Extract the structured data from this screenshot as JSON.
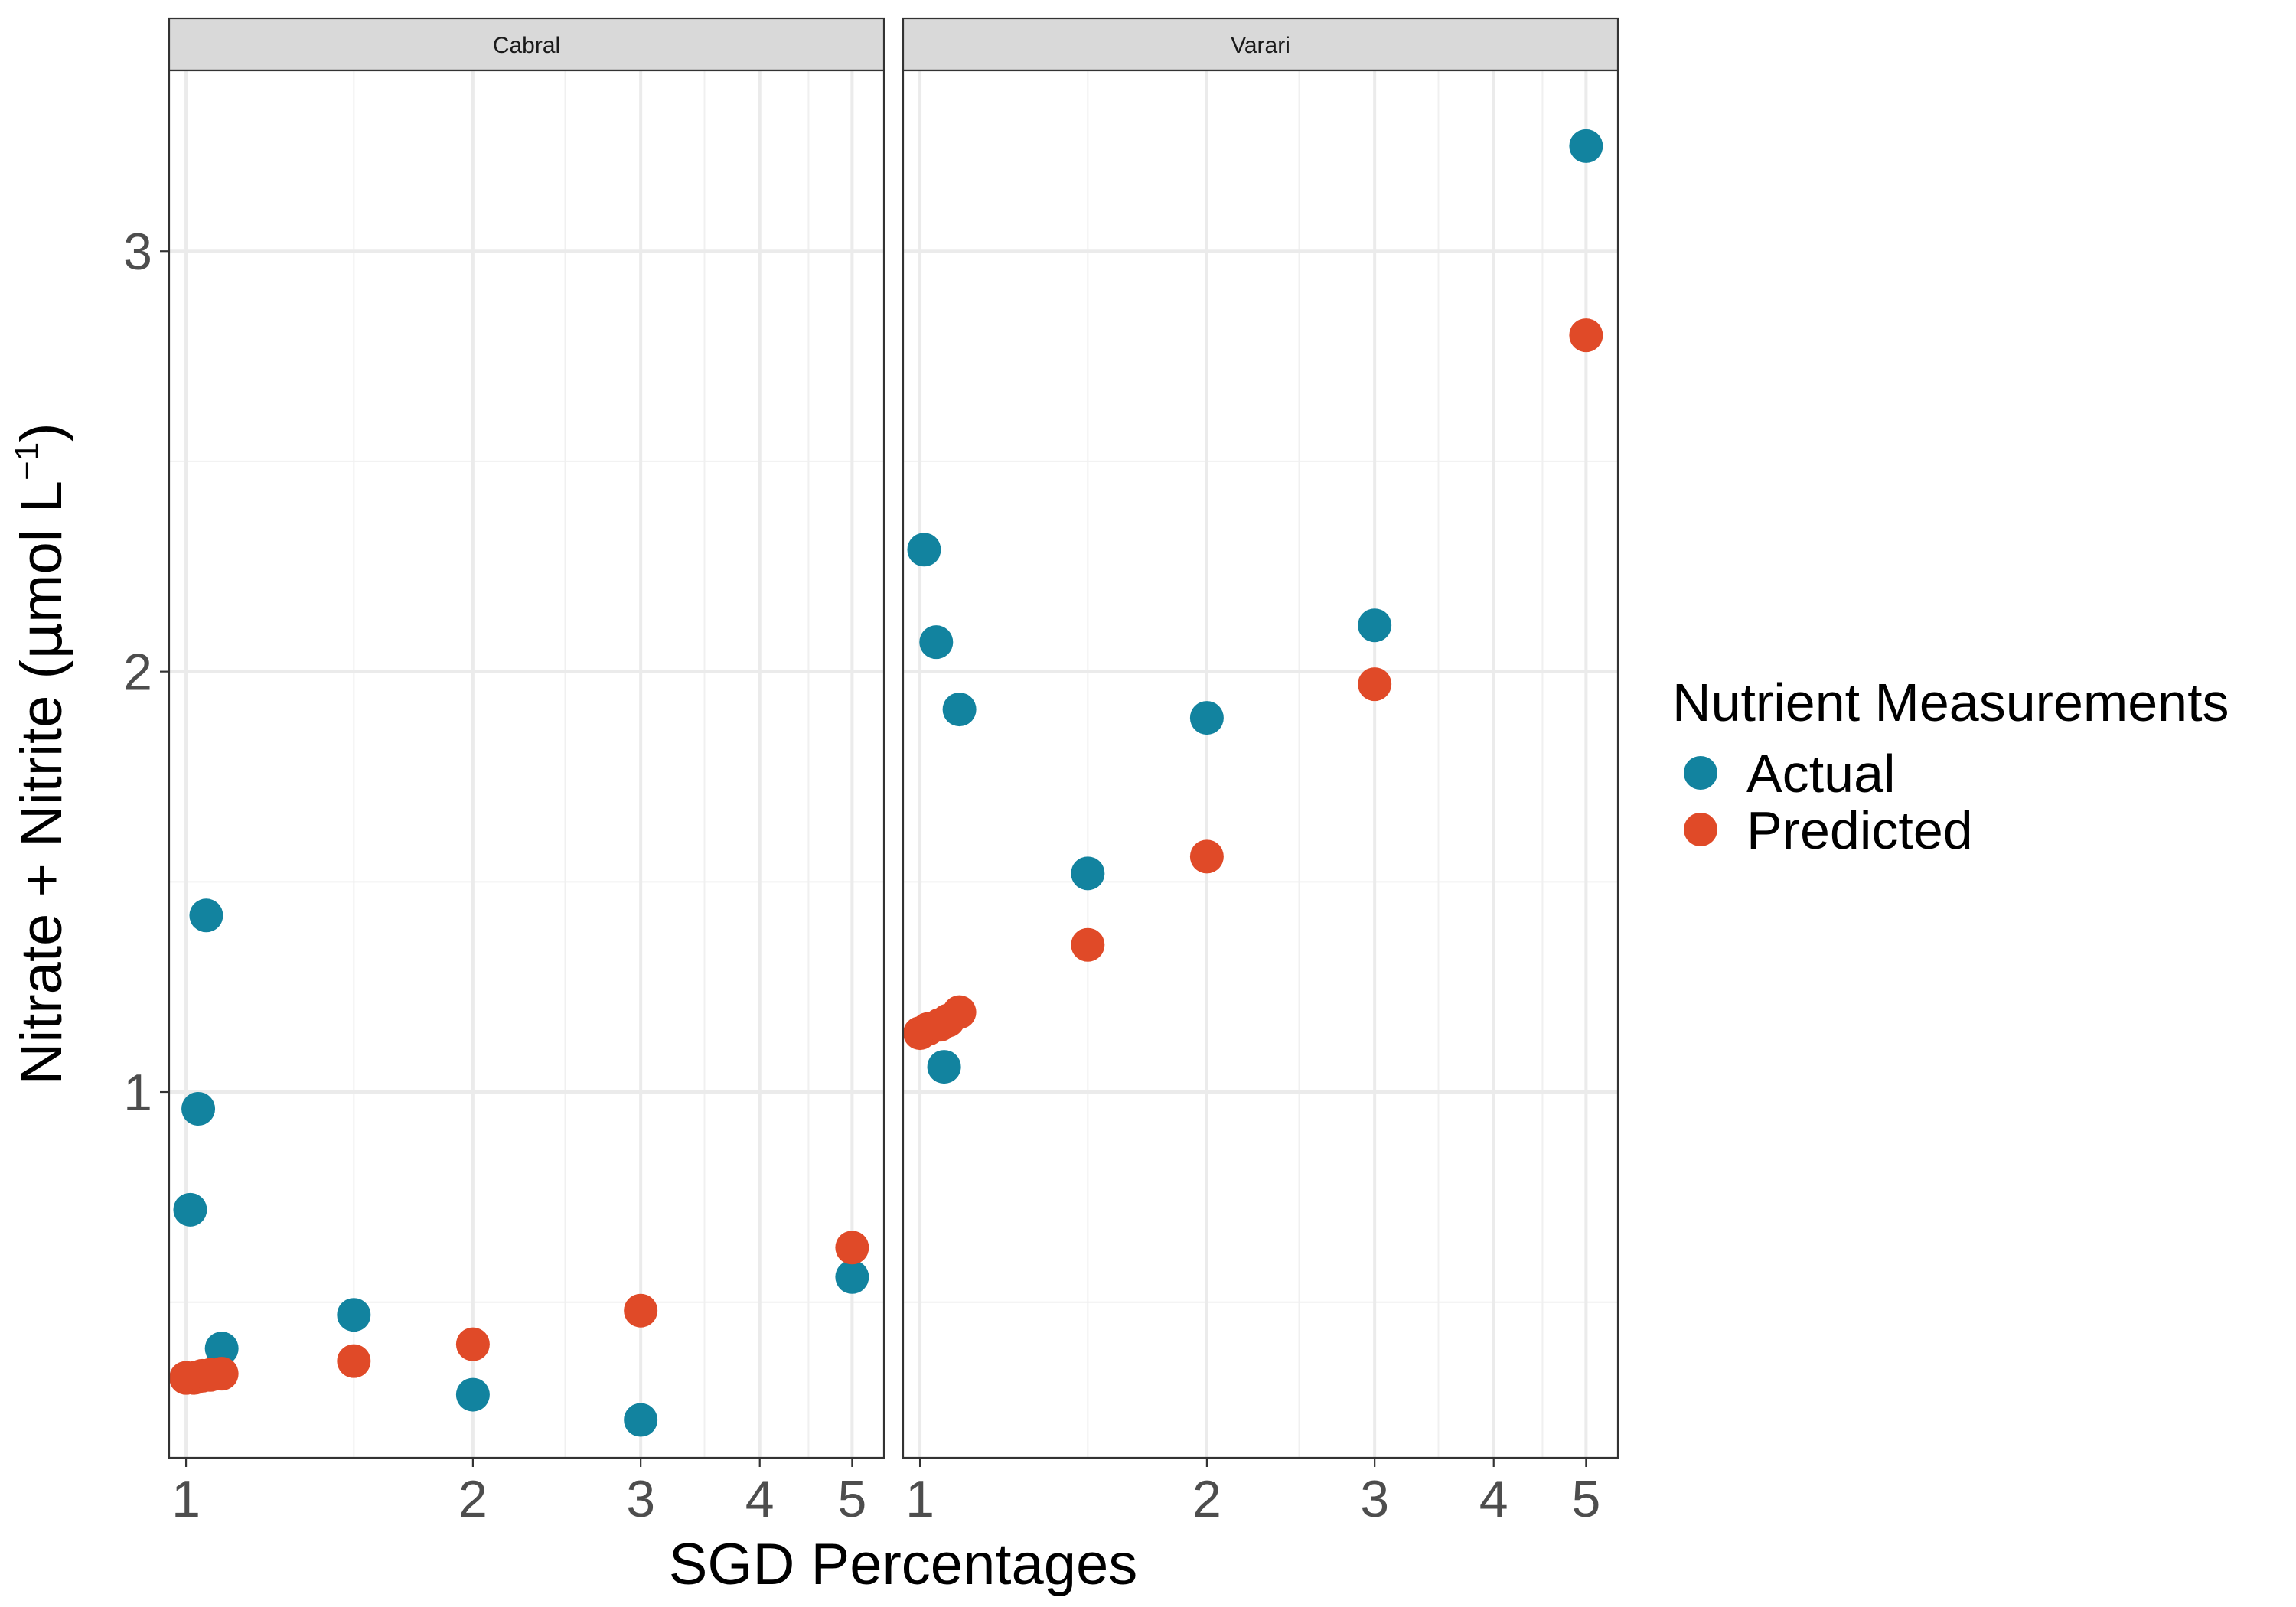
{
  "chart_data": {
    "type": "scatter",
    "xlabel": "SGD Percentages",
    "ylabel_main": "Nitrate + Nitrite (",
    "ylabel_mu": "μ",
    "ylabel_unit": "mol L",
    "ylabel_sup": "−1",
    "ylabel_close": ")",
    "x_scale": "log",
    "xlim": [
      0.96,
      5.4
    ],
    "ylim": [
      0.13,
      3.43
    ],
    "x_ticks": [
      1,
      2,
      3,
      4,
      5
    ],
    "x_tick_labels": [
      "1",
      "2",
      "3",
      "4",
      "5"
    ],
    "y_ticks": [
      1,
      2,
      3
    ],
    "y_tick_labels": [
      "1",
      "2",
      "3"
    ],
    "grid": true,
    "legend": {
      "title": "Nutrient Measurements",
      "position": "right",
      "entries": [
        {
          "label": "Actual",
          "color": "#12839f"
        },
        {
          "label": "Predicted",
          "color": "#e04a28"
        }
      ]
    },
    "facets": [
      {
        "name": "Cabral",
        "series": [
          {
            "name": "Actual",
            "color": "#12839f",
            "points": [
              [
                1.01,
                0.72
              ],
              [
                1.03,
                0.96
              ],
              [
                1.05,
                1.42
              ],
              [
                1.09,
                0.39
              ],
              [
                1.5,
                0.47
              ],
              [
                2.0,
                0.28
              ],
              [
                3.0,
                0.22
              ],
              [
                5.0,
                0.56
              ]
            ]
          },
          {
            "name": "Predicted",
            "color": "#e04a28",
            "points": [
              [
                1.0,
                0.32
              ],
              [
                1.02,
                0.32
              ],
              [
                1.04,
                0.325
              ],
              [
                1.06,
                0.327
              ],
              [
                1.09,
                0.33
              ],
              [
                1.5,
                0.36
              ],
              [
                2.0,
                0.4
              ],
              [
                3.0,
                0.48
              ],
              [
                5.0,
                0.63
              ]
            ]
          }
        ]
      },
      {
        "name": "Varari",
        "series": [
          {
            "name": "Actual",
            "color": "#12839f",
            "points": [
              [
                1.01,
                2.29
              ],
              [
                1.04,
                2.07
              ],
              [
                1.06,
                1.06
              ],
              [
                1.1,
                1.91
              ],
              [
                1.5,
                1.52
              ],
              [
                2.0,
                1.89
              ],
              [
                3.0,
                2.11
              ],
              [
                5.0,
                3.25
              ]
            ]
          },
          {
            "name": "Predicted",
            "color": "#e04a28",
            "points": [
              [
                1.0,
                1.14
              ],
              [
                1.02,
                1.15
              ],
              [
                1.05,
                1.16
              ],
              [
                1.07,
                1.17
              ],
              [
                1.1,
                1.19
              ],
              [
                1.5,
                1.35
              ],
              [
                2.0,
                1.56
              ],
              [
                3.0,
                1.97
              ],
              [
                5.0,
                2.8
              ]
            ]
          }
        ]
      }
    ]
  }
}
